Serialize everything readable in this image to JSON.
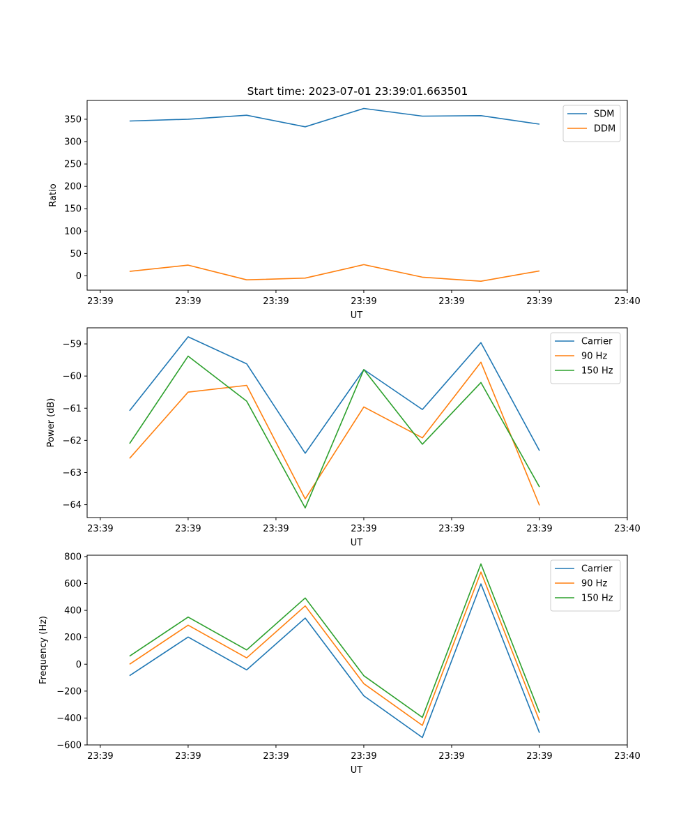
{
  "figure_title": "Start time: 2023-07-01 23:39:01.663501",
  "colors": {
    "blue": "#1f77b4",
    "orange": "#ff7f0e",
    "green": "#2ca02c"
  },
  "chart_data": [
    {
      "type": "line",
      "title": "Start time: 2023-07-01 23:39:01.663501",
      "xlabel": "UT",
      "ylabel": "Ratio",
      "x": [
        1,
        2,
        3,
        4,
        5,
        6,
        7,
        8
      ],
      "xlim": [
        0.275,
        9.5
      ],
      "ylim": [
        -32,
        392
      ],
      "xticks": [
        0.5,
        2,
        3.5,
        5,
        6.5,
        8,
        9.5
      ],
      "xtick_labels": [
        "23:39",
        "23:39",
        "23:39",
        "23:39",
        "23:39",
        "23:39",
        "23:40"
      ],
      "yticks": [
        0,
        50,
        100,
        150,
        200,
        250,
        300,
        350
      ],
      "ytick_labels": [
        "0",
        "50",
        "100",
        "150",
        "200",
        "250",
        "300",
        "350"
      ],
      "legend_position": "upper right",
      "series": [
        {
          "name": "SDM",
          "color": "#1f77b4",
          "values": [
            346,
            350,
            359,
            333,
            374,
            357,
            358,
            339
          ]
        },
        {
          "name": "DDM",
          "color": "#ff7f0e",
          "values": [
            10,
            24,
            -9,
            -5,
            25,
            -3,
            -12,
            11
          ]
        }
      ]
    },
    {
      "type": "line",
      "title": "",
      "xlabel": "UT",
      "ylabel": "Power (dB)",
      "x": [
        1,
        2,
        3,
        4,
        5,
        6,
        7,
        8
      ],
      "xlim": [
        0.275,
        9.5
      ],
      "ylim": [
        -64.4,
        -58.5
      ],
      "xticks": [
        0.5,
        2,
        3.5,
        5,
        6.5,
        8,
        9.5
      ],
      "xtick_labels": [
        "23:39",
        "23:39",
        "23:39",
        "23:39",
        "23:39",
        "23:39",
        "23:40"
      ],
      "yticks": [
        -64,
        -63,
        -62,
        -61,
        -60,
        -59
      ],
      "ytick_labels": [
        "−64",
        "−63",
        "−62",
        "−61",
        "−60",
        "−59"
      ],
      "legend_position": "upper right",
      "series": [
        {
          "name": "Carrier",
          "color": "#1f77b4",
          "values": [
            -61.08,
            -58.78,
            -59.62,
            -62.4,
            -59.8,
            -61.04,
            -58.96,
            -62.32
          ]
        },
        {
          "name": "90 Hz",
          "color": "#ff7f0e",
          "values": [
            -62.56,
            -60.5,
            -60.29,
            -63.82,
            -60.96,
            -61.92,
            -59.57,
            -64.02
          ]
        },
        {
          "name": "150 Hz",
          "color": "#2ca02c",
          "values": [
            -62.1,
            -59.38,
            -60.78,
            -64.1,
            -59.8,
            -62.12,
            -60.2,
            -63.45
          ]
        }
      ]
    },
    {
      "type": "line",
      "title": "",
      "xlabel": "UT",
      "ylabel": "Frequency (Hz)",
      "x": [
        1,
        2,
        3,
        4,
        5,
        6,
        7,
        8
      ],
      "xlim": [
        0.275,
        9.5
      ],
      "ylim": [
        -600,
        810
      ],
      "xticks": [
        0.5,
        2,
        3.5,
        5,
        6.5,
        8,
        9.5
      ],
      "xtick_labels": [
        "23:39",
        "23:39",
        "23:39",
        "23:39",
        "23:39",
        "23:39",
        "23:40"
      ],
      "yticks": [
        -600,
        -400,
        -200,
        0,
        200,
        400,
        600,
        800
      ],
      "ytick_labels": [
        "−600",
        "−400",
        "−200",
        "0",
        "200",
        "400",
        "600",
        "800"
      ],
      "legend_position": "upper right",
      "series": [
        {
          "name": "Carrier",
          "color": "#1f77b4",
          "values": [
            -85,
            202,
            -42,
            343,
            -235,
            -545,
            597,
            -510
          ]
        },
        {
          "name": "90 Hz",
          "color": "#ff7f0e",
          "values": [
            0,
            290,
            47,
            433,
            -145,
            -455,
            685,
            -420
          ]
        },
        {
          "name": "150 Hz",
          "color": "#2ca02c",
          "values": [
            60,
            350,
            106,
            492,
            -86,
            -395,
            745,
            -360
          ]
        }
      ]
    }
  ]
}
